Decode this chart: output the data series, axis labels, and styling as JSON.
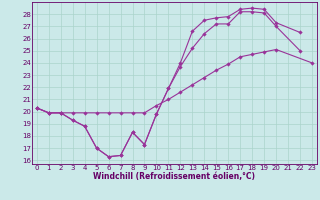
{
  "xlabel": "Windchill (Refroidissement éolien,°C)",
  "line1_x": [
    0,
    1,
    2,
    3,
    4,
    5,
    6,
    7,
    8,
    9,
    10,
    11,
    12,
    13,
    14,
    15,
    16,
    17,
    18,
    19,
    20,
    22
  ],
  "line1_y": [
    20.3,
    19.9,
    19.9,
    19.3,
    18.8,
    17.0,
    16.3,
    16.4,
    18.3,
    17.3,
    19.8,
    21.9,
    23.7,
    25.2,
    26.4,
    27.2,
    27.2,
    28.2,
    28.2,
    28.1,
    27.0,
    25.0
  ],
  "line2_x": [
    0,
    1,
    2,
    3,
    4,
    5,
    6,
    7,
    8,
    9,
    10,
    11,
    12,
    13,
    14,
    15,
    16,
    17,
    18,
    19,
    20,
    23
  ],
  "line2_y": [
    20.3,
    19.9,
    19.9,
    19.9,
    19.9,
    19.9,
    19.9,
    19.9,
    19.9,
    19.9,
    20.5,
    21.0,
    21.6,
    22.2,
    22.8,
    23.4,
    23.9,
    24.5,
    24.7,
    24.9,
    25.1,
    24.0
  ],
  "line3_x": [
    0,
    1,
    2,
    3,
    4,
    5,
    6,
    7,
    8,
    9,
    10,
    11,
    12,
    13,
    14,
    15,
    16,
    17,
    18,
    19,
    20,
    22
  ],
  "line3_y": [
    20.3,
    19.9,
    19.9,
    19.3,
    18.8,
    17.0,
    16.3,
    16.4,
    18.3,
    17.3,
    19.8,
    21.9,
    24.0,
    26.6,
    27.5,
    27.7,
    27.8,
    28.4,
    28.5,
    28.4,
    27.3,
    26.5
  ],
  "bg_color": "#cbe9e9",
  "grid_color": "#aad4cc",
  "line_color": "#993399",
  "text_color": "#660066",
  "spine_color": "#660066",
  "ylim": [
    15.7,
    29.0
  ],
  "xlim": [
    -0.4,
    23.4
  ],
  "yticks": [
    16,
    17,
    18,
    19,
    20,
    21,
    22,
    23,
    24,
    25,
    26,
    27,
    28
  ],
  "xticks": [
    0,
    1,
    2,
    3,
    4,
    5,
    6,
    7,
    8,
    9,
    10,
    11,
    12,
    13,
    14,
    15,
    16,
    17,
    18,
    19,
    20,
    21,
    22,
    23
  ],
  "tick_fontsize": 5.0,
  "label_fontsize": 5.5,
  "marker_size": 2.2,
  "line_width": 0.8
}
